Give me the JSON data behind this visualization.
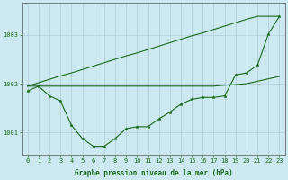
{
  "background_color": "#cce8f0",
  "plot_bg_color": "#cce8f0",
  "grid_color": "#b0ccd8",
  "line_color": "#1a6b1a",
  "x_ticks": [
    0,
    1,
    2,
    3,
    4,
    5,
    6,
    7,
    8,
    9,
    10,
    11,
    12,
    13,
    14,
    15,
    16,
    17,
    18,
    19,
    20,
    21,
    22,
    23
  ],
  "xlim": [
    -0.5,
    23.5
  ],
  "ylim": [
    1000.55,
    1003.65
  ],
  "yticks": [
    1001,
    1002,
    1003
  ],
  "series_main": [
    1001.85,
    1001.95,
    1001.75,
    1001.65,
    1001.15,
    1000.88,
    1000.72,
    1000.72,
    1000.88,
    1001.08,
    1001.12,
    1001.12,
    1001.28,
    1001.42,
    1001.58,
    1001.68,
    1001.72,
    1001.72,
    1001.75,
    1002.18,
    1002.22,
    1002.38,
    1003.02,
    1003.38
  ],
  "series_flat": [
    1001.95,
    1001.95,
    1001.95,
    1001.95,
    1001.95,
    1001.95,
    1001.95,
    1001.95,
    1001.95,
    1001.95,
    1001.95,
    1001.95,
    1001.95,
    1001.95,
    1001.95,
    1001.95,
    1001.95,
    1001.95,
    1001.97,
    1001.98,
    1002.0,
    1002.05,
    1002.1,
    1002.15
  ],
  "series_diag": [
    1001.95,
    1002.02,
    1002.09,
    1002.16,
    1002.22,
    1002.29,
    1002.36,
    1002.43,
    1002.5,
    1002.57,
    1002.63,
    1002.7,
    1002.77,
    1002.84,
    1002.91,
    1002.98,
    1003.04,
    1003.11,
    1003.18,
    1003.25,
    1003.32,
    1003.38,
    1003.38,
    1003.38
  ],
  "xlabel": "Graphe pression niveau de la mer (hPa)",
  "font_family": "monospace",
  "tick_fontsize": 5.0,
  "xlabel_fontsize": 5.5
}
